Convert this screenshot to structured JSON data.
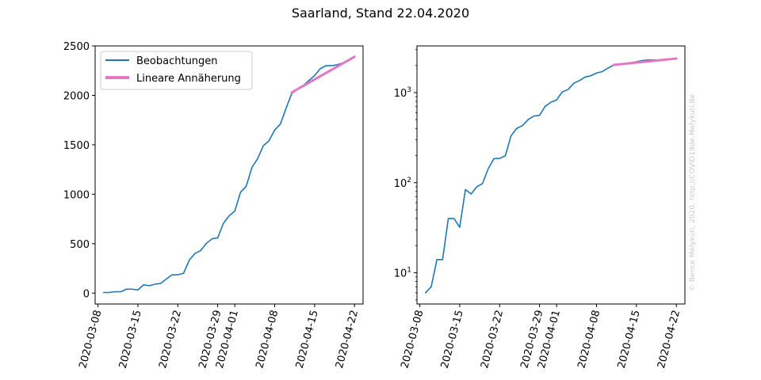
{
  "title": "Saarland, Stand 22.04.2020",
  "credit": "© Bence Mélykúti, 2020. http://COVID19de.Melykuti.Be",
  "colors": {
    "observed": "#1f77b4",
    "fit": "#e377c2"
  },
  "chart_data": [
    {
      "type": "line",
      "yscale": "linear",
      "ylim": [
        -110,
        2500
      ],
      "y_ticks": [
        0,
        500,
        1000,
        1500,
        2000,
        2500
      ],
      "x_ticks": [
        "2020-03-08",
        "2020-03-15",
        "2020-03-22",
        "2020-03-29",
        "2020-04-01",
        "2020-04-08",
        "2020-04-15",
        "2020-04-22"
      ],
      "grid": false,
      "legend": "upper-left",
      "series": [
        {
          "name": "Beobachtungen",
          "ref": "observed"
        },
        {
          "name": "Lineare Annäherung",
          "ref": "fit"
        }
      ]
    },
    {
      "type": "line",
      "yscale": "log",
      "ylim": [
        4.5,
        3300
      ],
      "y_ticks": [
        {
          "value": 10,
          "label": "10",
          "sup": "1"
        },
        {
          "value": 100,
          "label": "10",
          "sup": "2"
        },
        {
          "value": 1000,
          "label": "10",
          "sup": "3"
        }
      ],
      "x_ticks": [
        "2020-03-08",
        "2020-03-15",
        "2020-03-22",
        "2020-03-29",
        "2020-04-01",
        "2020-04-08",
        "2020-04-15",
        "2020-04-22"
      ],
      "grid": false,
      "series": [
        {
          "ref": "observed"
        },
        {
          "ref": "fit"
        }
      ]
    }
  ],
  "series_values": {
    "observed": {
      "x": [
        "2020-03-09",
        "2020-03-10",
        "2020-03-11",
        "2020-03-12",
        "2020-03-13",
        "2020-03-14",
        "2020-03-15",
        "2020-03-16",
        "2020-03-17",
        "2020-03-18",
        "2020-03-19",
        "2020-03-20",
        "2020-03-21",
        "2020-03-22",
        "2020-03-23",
        "2020-03-24",
        "2020-03-25",
        "2020-03-26",
        "2020-03-27",
        "2020-03-28",
        "2020-03-29",
        "2020-03-30",
        "2020-03-31",
        "2020-04-01",
        "2020-04-02",
        "2020-04-03",
        "2020-04-04",
        "2020-04-05",
        "2020-04-06",
        "2020-04-07",
        "2020-04-08",
        "2020-04-09",
        "2020-04-10",
        "2020-04-11",
        "2020-04-12",
        "2020-04-13",
        "2020-04-14",
        "2020-04-15",
        "2020-04-16",
        "2020-04-17",
        "2020-04-18",
        "2020-04-19",
        "2020-04-20",
        "2020-04-21",
        "2020-04-22"
      ],
      "y": [
        6,
        7,
        14,
        14,
        40,
        40,
        32,
        84,
        75,
        90,
        98,
        143,
        185,
        186,
        199,
        332,
        401,
        430,
        502,
        549,
        559,
        706,
        782,
        830,
        1020,
        1080,
        1270,
        1360,
        1490,
        1540,
        1650,
        1710,
        1870,
        2020,
        2060,
        2100,
        2150,
        2200,
        2270,
        2300,
        2300,
        2310,
        2330,
        2350,
        2390
      ]
    },
    "fit": {
      "x": [
        "2020-04-11",
        "2020-04-22"
      ],
      "y": [
        2030,
        2390
      ]
    }
  }
}
